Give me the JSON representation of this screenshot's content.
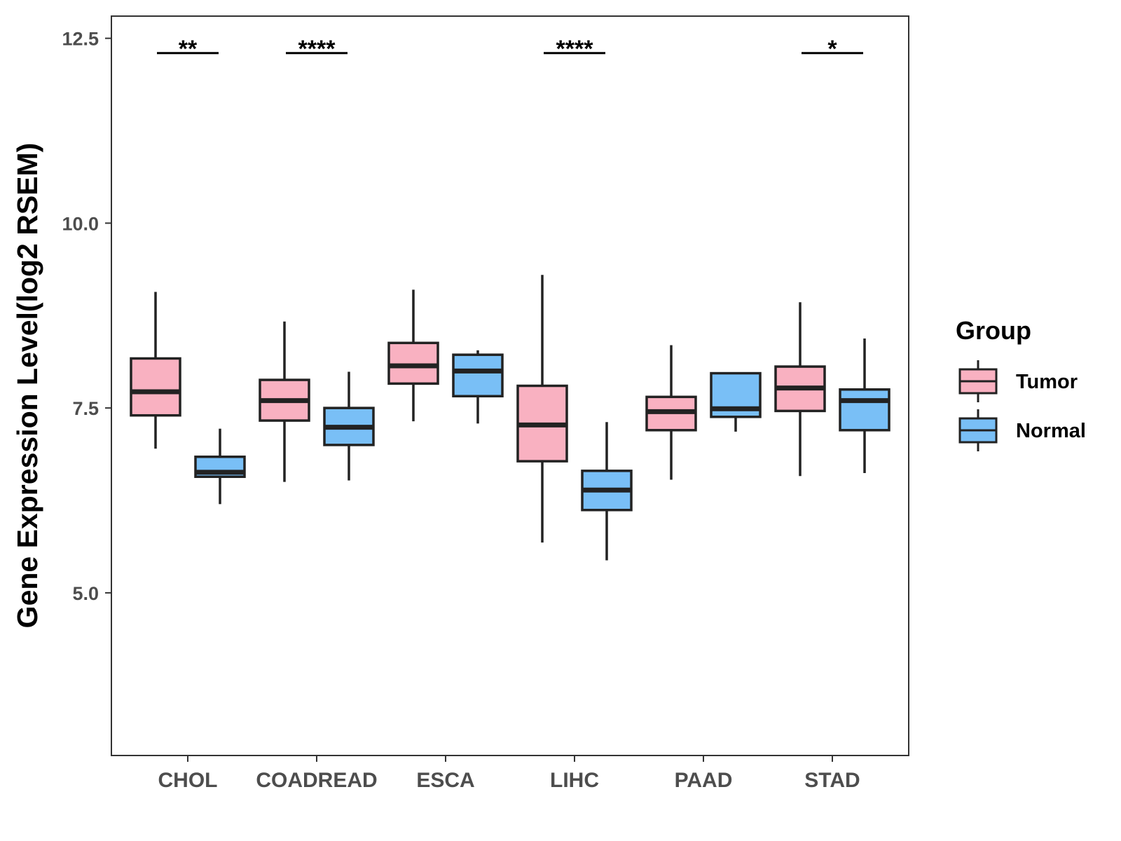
{
  "chart_data": {
    "type": "boxplot",
    "ylabel": "Gene Expression Level(log2 RSEM)",
    "xlabel": "",
    "ylim": [
      2.8,
      12.8
    ],
    "yticks": [
      {
        "value": 5.0,
        "label": "5.0"
      },
      {
        "value": 7.5,
        "label": "7.5"
      },
      {
        "value": 10.0,
        "label": "10.0"
      },
      {
        "value": 12.5,
        "label": "12.5"
      }
    ],
    "categories": [
      "CHOL",
      "COADREAD",
      "ESCA",
      "LIHC",
      "PAAD",
      "STAD"
    ],
    "legend": {
      "title": "Group",
      "position": "right",
      "items": [
        {
          "name": "Tumor",
          "color": "#f9b1c1"
        },
        {
          "name": "Normal",
          "color": "#79bff6"
        }
      ]
    },
    "series": [
      {
        "name": "Tumor",
        "color": "#f9b1c1",
        "boxes": [
          {
            "min": 6.95,
            "q1": 7.4,
            "median": 7.72,
            "q3": 8.17,
            "max": 9.07
          },
          {
            "min": 6.5,
            "q1": 7.33,
            "median": 7.6,
            "q3": 7.88,
            "max": 8.67
          },
          {
            "min": 7.32,
            "q1": 7.83,
            "median": 8.07,
            "q3": 8.38,
            "max": 9.1
          },
          {
            "min": 5.68,
            "q1": 6.78,
            "median": 7.27,
            "q3": 7.8,
            "max": 9.3
          },
          {
            "min": 6.53,
            "q1": 7.2,
            "median": 7.45,
            "q3": 7.65,
            "max": 8.35
          },
          {
            "min": 6.58,
            "q1": 7.46,
            "median": 7.77,
            "q3": 8.06,
            "max": 8.93
          }
        ]
      },
      {
        "name": "Normal",
        "color": "#79bff6",
        "boxes": [
          {
            "min": 6.2,
            "q1": 6.57,
            "median": 6.63,
            "q3": 6.84,
            "max": 7.22
          },
          {
            "min": 6.52,
            "q1": 7.0,
            "median": 7.24,
            "q3": 7.5,
            "max": 7.99
          },
          {
            "min": 7.29,
            "q1": 7.66,
            "median": 8.0,
            "q3": 8.22,
            "max": 8.28
          },
          {
            "min": 5.44,
            "q1": 6.12,
            "median": 6.39,
            "q3": 6.65,
            "max": 7.31
          },
          {
            "min": 7.18,
            "q1": 7.38,
            "median": 7.49,
            "q3": 7.97,
            "max": 7.97
          },
          {
            "min": 6.62,
            "q1": 7.2,
            "median": 7.6,
            "q3": 7.75,
            "max": 8.44
          }
        ]
      }
    ],
    "annotations": [
      {
        "category": "CHOL",
        "label": "**",
        "y": 12.3
      },
      {
        "category": "COADREAD",
        "label": "****",
        "y": 12.3
      },
      {
        "category": "LIHC",
        "label": "****",
        "y": 12.3
      },
      {
        "category": "STAD",
        "label": "*",
        "y": 12.3
      }
    ]
  }
}
